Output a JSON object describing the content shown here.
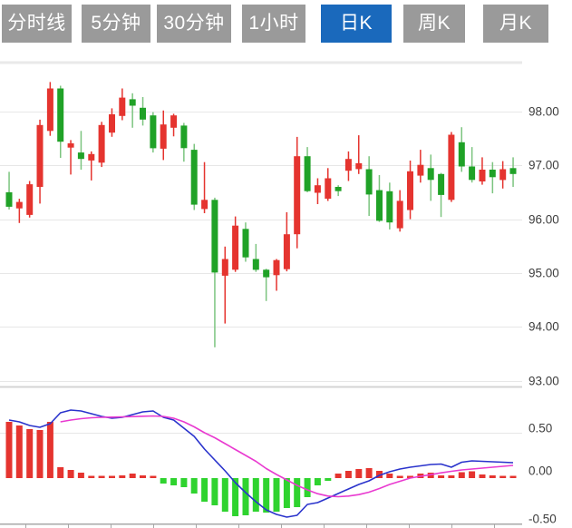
{
  "toolbar": {
    "tabs": [
      {
        "key": "timeline",
        "label": "分时线",
        "active": false
      },
      {
        "key": "5min",
        "label": "5分钟",
        "active": false
      },
      {
        "key": "30min",
        "label": "30分钟",
        "active": false
      },
      {
        "key": "1hour",
        "label": "1小时",
        "active": false
      },
      {
        "key": "daily",
        "label": "日K",
        "active": true
      },
      {
        "key": "weekly",
        "label": "周K",
        "active": false
      },
      {
        "key": "monthly",
        "label": "月K",
        "active": false
      }
    ],
    "active_bg": "#1a69bc",
    "inactive_bg": "#9a9a9a",
    "text_color": "#ffffff"
  },
  "chart_data": {
    "type": "candlestick-with-macd",
    "main_pane": {
      "y_axis": {
        "tick_values": [
          98,
          97,
          96,
          95,
          94,
          93
        ],
        "tick_labels": [
          "98.00",
          "97.00",
          "96.00",
          "95.00",
          "94.00",
          "93.00"
        ],
        "range": [
          92.85,
          99.05
        ],
        "grid": true,
        "legend_position": "none"
      },
      "candles": [
        {
          "o": 96.5,
          "h": 96.88,
          "l": 96.18,
          "c": 96.23
        },
        {
          "o": 96.2,
          "h": 96.38,
          "l": 95.93,
          "c": 96.32
        },
        {
          "o": 96.08,
          "h": 96.71,
          "l": 96.03,
          "c": 96.65
        },
        {
          "o": 96.6,
          "h": 97.85,
          "l": 96.29,
          "c": 97.75
        },
        {
          "o": 97.64,
          "h": 98.55,
          "l": 97.55,
          "c": 98.43
        },
        {
          "o": 98.43,
          "h": 98.48,
          "l": 97.14,
          "c": 97.44
        },
        {
          "o": 97.33,
          "h": 97.47,
          "l": 96.83,
          "c": 97.41
        },
        {
          "o": 97.24,
          "h": 97.64,
          "l": 96.92,
          "c": 97.12
        },
        {
          "o": 97.09,
          "h": 97.26,
          "l": 96.72,
          "c": 97.21
        },
        {
          "o": 97.05,
          "h": 97.81,
          "l": 96.97,
          "c": 97.75
        },
        {
          "o": 97.61,
          "h": 98.06,
          "l": 97.53,
          "c": 97.95
        },
        {
          "o": 97.92,
          "h": 98.43,
          "l": 97.84,
          "c": 98.26
        },
        {
          "o": 98.23,
          "h": 98.34,
          "l": 97.7,
          "c": 98.11
        },
        {
          "o": 98.07,
          "h": 98.27,
          "l": 97.74,
          "c": 97.85
        },
        {
          "o": 97.93,
          "h": 97.99,
          "l": 97.24,
          "c": 97.32
        },
        {
          "o": 97.31,
          "h": 98.02,
          "l": 97.1,
          "c": 97.76
        },
        {
          "o": 97.7,
          "h": 97.96,
          "l": 97.54,
          "c": 97.93
        },
        {
          "o": 97.74,
          "h": 97.79,
          "l": 97.07,
          "c": 97.32
        },
        {
          "o": 97.29,
          "h": 97.4,
          "l": 96.17,
          "c": 96.27
        },
        {
          "o": 96.19,
          "h": 97.06,
          "l": 96.11,
          "c": 96.36
        },
        {
          "o": 96.36,
          "h": 96.4,
          "l": 93.62,
          "c": 95.01
        },
        {
          "o": 94.95,
          "h": 95.49,
          "l": 94.06,
          "c": 95.26
        },
        {
          "o": 95.06,
          "h": 96.05,
          "l": 95.02,
          "c": 95.88
        },
        {
          "o": 95.82,
          "h": 95.94,
          "l": 95.21,
          "c": 95.29
        },
        {
          "o": 95.26,
          "h": 95.54,
          "l": 95.02,
          "c": 95.06
        },
        {
          "o": 95.06,
          "h": 95.08,
          "l": 94.48,
          "c": 94.92
        },
        {
          "o": 94.96,
          "h": 95.26,
          "l": 94.67,
          "c": 95.24
        },
        {
          "o": 95.07,
          "h": 96.13,
          "l": 95.03,
          "c": 95.72
        },
        {
          "o": 95.72,
          "h": 97.53,
          "l": 95.46,
          "c": 97.17
        },
        {
          "o": 97.17,
          "h": 97.34,
          "l": 96.5,
          "c": 96.52
        },
        {
          "o": 96.49,
          "h": 96.76,
          "l": 96.28,
          "c": 96.63
        },
        {
          "o": 96.38,
          "h": 96.95,
          "l": 96.34,
          "c": 96.76
        },
        {
          "o": 96.6,
          "h": 96.63,
          "l": 96.43,
          "c": 96.52
        },
        {
          "o": 96.9,
          "h": 97.26,
          "l": 96.71,
          "c": 97.12
        },
        {
          "o": 96.93,
          "h": 97.56,
          "l": 96.84,
          "c": 97.04
        },
        {
          "o": 96.93,
          "h": 97.17,
          "l": 96.06,
          "c": 96.46
        },
        {
          "o": 96.54,
          "h": 96.82,
          "l": 95.95,
          "c": 95.97
        },
        {
          "o": 96.52,
          "h": 96.68,
          "l": 95.81,
          "c": 95.94
        },
        {
          "o": 95.83,
          "h": 96.54,
          "l": 95.77,
          "c": 96.34
        },
        {
          "o": 96.17,
          "h": 97.09,
          "l": 96.0,
          "c": 96.89
        },
        {
          "o": 96.81,
          "h": 97.29,
          "l": 96.68,
          "c": 97.01
        },
        {
          "o": 96.95,
          "h": 97.2,
          "l": 96.34,
          "c": 96.73
        },
        {
          "o": 96.84,
          "h": 96.86,
          "l": 96.04,
          "c": 96.45
        },
        {
          "o": 96.36,
          "h": 97.62,
          "l": 96.32,
          "c": 97.57
        },
        {
          "o": 97.43,
          "h": 97.71,
          "l": 96.88,
          "c": 96.98
        },
        {
          "o": 96.98,
          "h": 97.34,
          "l": 96.68,
          "c": 96.73
        },
        {
          "o": 96.7,
          "h": 97.15,
          "l": 96.64,
          "c": 96.92
        },
        {
          "o": 96.92,
          "h": 97.06,
          "l": 96.48,
          "c": 96.78
        },
        {
          "o": 96.73,
          "h": 97.08,
          "l": 96.57,
          "c": 96.93
        },
        {
          "o": 96.95,
          "h": 97.15,
          "l": 96.6,
          "c": 96.84
        }
      ]
    },
    "macd_pane": {
      "y_axis": {
        "tick_values": [
          0.5,
          0.0,
          -0.5
        ],
        "tick_labels": [
          "0.50",
          "0.00",
          "-0.50"
        ],
        "range": [
          -0.55,
          0.78
        ],
        "grid": true
      },
      "histogram": [
        0.62,
        0.58,
        0.54,
        0.53,
        0.62,
        0.12,
        0.09,
        0.06,
        0.02,
        0.01,
        0.02,
        0.03,
        0.05,
        0.03,
        0.02,
        -0.06,
        -0.08,
        -0.1,
        -0.17,
        -0.26,
        -0.3,
        -0.37,
        -0.42,
        -0.41,
        -0.37,
        -0.38,
        -0.37,
        -0.33,
        -0.32,
        -0.21,
        -0.08,
        -0.03,
        0.05,
        0.08,
        0.1,
        0.11,
        0.08,
        0.05,
        0.01,
        0.01,
        0.05,
        0.06,
        0.03,
        0.03,
        0.065,
        0.075,
        0.04,
        0.03,
        0.02,
        0.02
      ],
      "dif": [
        0.64,
        0.62,
        0.58,
        0.56,
        0.6,
        0.72,
        0.75,
        0.74,
        0.71,
        0.68,
        0.66,
        0.67,
        0.7,
        0.73,
        0.74,
        0.67,
        0.64,
        0.55,
        0.46,
        0.32,
        0.2,
        0.08,
        -0.05,
        -0.16,
        -0.26,
        -0.35,
        -0.4,
        -0.43,
        -0.41,
        -0.29,
        -0.27,
        -0.22,
        -0.17,
        -0.12,
        -0.07,
        -0.03,
        0.03,
        0.07,
        0.1,
        0.12,
        0.135,
        0.15,
        0.155,
        0.12,
        0.175,
        0.19,
        0.185,
        0.18,
        0.175,
        0.17
      ],
      "dea": [
        null,
        null,
        null,
        null,
        null,
        0.62,
        0.64,
        0.655,
        0.665,
        0.67,
        0.672,
        0.675,
        0.678,
        0.682,
        0.685,
        0.68,
        0.66,
        0.62,
        0.565,
        0.5,
        0.445,
        0.38,
        0.315,
        0.25,
        0.185,
        0.105,
        0.04,
        -0.02,
        -0.08,
        -0.13,
        -0.172,
        -0.198,
        -0.205,
        -0.198,
        -0.182,
        -0.155,
        -0.115,
        -0.07,
        -0.035,
        0.0,
        0.02,
        0.038,
        0.058,
        0.075,
        0.09,
        0.1,
        0.11,
        0.12,
        0.13,
        0.14
      ]
    },
    "colors": {
      "up": "#e5342f",
      "down": "#20a227",
      "down_wick": "#7cc47f",
      "hist_up": "#e5342f",
      "hist_down": "#2fd32f",
      "dif_line": "#2a33cc",
      "dea_line": "#e93ad0",
      "grid": "#e7e7e7",
      "pane_border": "#d4d4d4",
      "x_axis": "#a8a8a8",
      "axis_text": "#3e3e3e"
    }
  }
}
